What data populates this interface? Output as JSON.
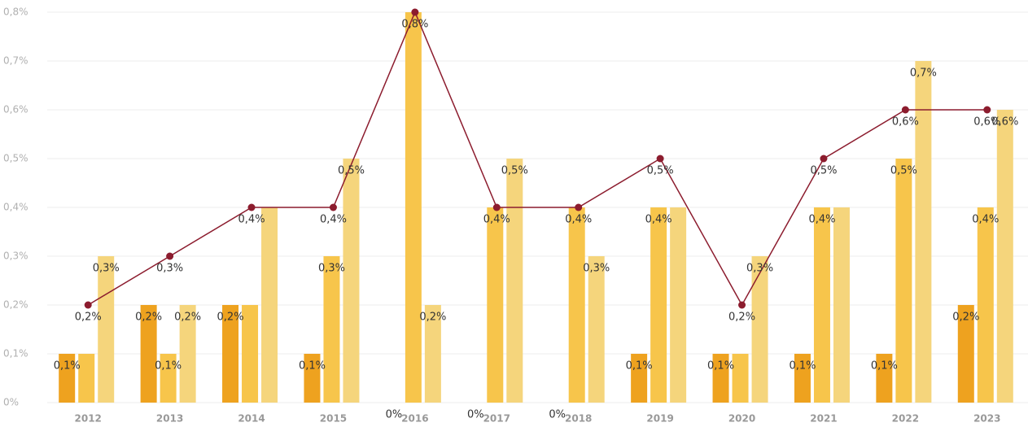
{
  "chart_data": {
    "type": "bar",
    "categories": [
      "2012",
      "2013",
      "2014",
      "2015",
      "2016",
      "2017",
      "2018",
      "2019",
      "2020",
      "2021",
      "2022",
      "2023"
    ],
    "series": [
      {
        "color": "#eea21f",
        "values": [
          0.1,
          0.2,
          0.2,
          0.1,
          0,
          0,
          0,
          0.1,
          0.1,
          0.1,
          0.1,
          0.2
        ],
        "value_labels": [
          "0,1%",
          "0,2%",
          "0,2%",
          "0,1%",
          "0%",
          "0%",
          "0%",
          "0,1%",
          "0,1%",
          "0,1%",
          "0,1%",
          "0,2%"
        ]
      },
      {
        "color": "#f7c54b",
        "values": [
          0.1,
          0.1,
          0.2,
          0.3,
          0.8,
          0.4,
          0.4,
          0.4,
          0.1,
          0.4,
          0.5,
          0.4
        ],
        "value_labels": [
          null,
          "0,1%",
          null,
          "0,3%",
          null,
          null,
          null,
          "0,4%",
          null,
          "0,4%",
          "0,5%",
          "0,4%"
        ]
      },
      {
        "color": "#f5d57c",
        "values": [
          0.3,
          0.2,
          0.4,
          0.5,
          0.2,
          0.5,
          0.3,
          0.4,
          0.3,
          0.4,
          0.7,
          0.6
        ],
        "value_labels": [
          "0,3%",
          "0,2%",
          null,
          "0,5%",
          "0,2%",
          "0,5%",
          "0,3%",
          null,
          "0,3%",
          null,
          "0,7%",
          "0,6%"
        ]
      },
      {
        "type": "line",
        "color": "#8c1c2e",
        "values": [
          0.2,
          0.3,
          0.4,
          0.4,
          0.8,
          0.4,
          0.4,
          0.5,
          0.2,
          0.5,
          0.6,
          0.6
        ],
        "value_labels": [
          "0,2%",
          "0,3%",
          "0,4%",
          "0,4%",
          "0,8%",
          "0,4%",
          "0,4%",
          "0,5%",
          "0,2%",
          "0,5%",
          "0,6%",
          "0,6%"
        ]
      }
    ],
    "ylim": [
      0,
      0.8
    ],
    "yticks": [
      {
        "value": 0,
        "label": "0%"
      },
      {
        "value": 0.1,
        "label": "0,1%"
      },
      {
        "value": 0.2,
        "label": "0,2%"
      },
      {
        "value": 0.3,
        "label": "0,3%"
      },
      {
        "value": 0.4,
        "label": "0,4%"
      },
      {
        "value": 0.5,
        "label": "0,5%"
      },
      {
        "value": 0.6,
        "label": "0,6%"
      },
      {
        "value": 0.7,
        "label": "0,7%"
      },
      {
        "value": 0.8,
        "label": "0,8%"
      }
    ],
    "grid": true
  }
}
